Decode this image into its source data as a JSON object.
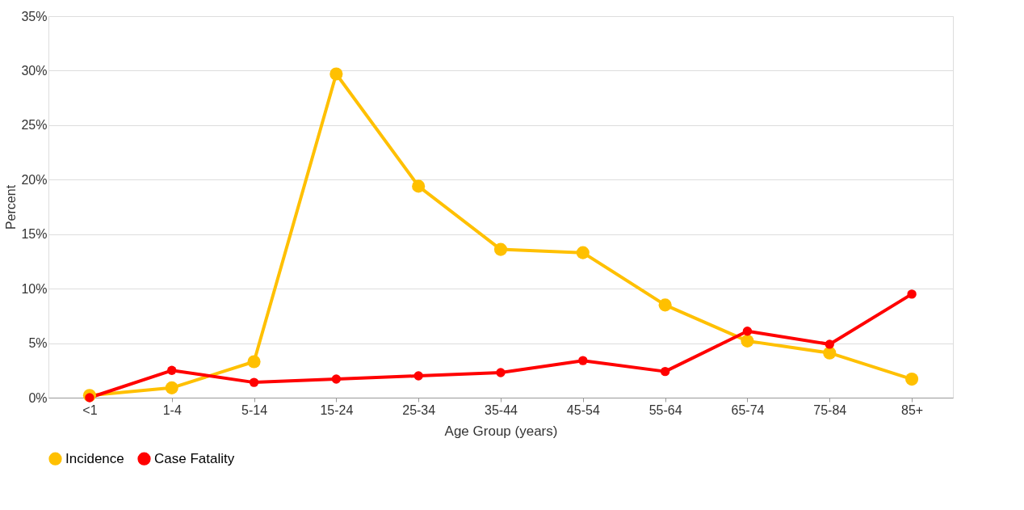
{
  "chart_data": {
    "type": "line",
    "xlabel": "Age Group (years)",
    "ylabel": "Percent",
    "categories": [
      "<1",
      "1-4",
      "5-14",
      "15-24",
      "25-34",
      "35-44",
      "45-54",
      "55-64",
      "65-74",
      "75-84",
      "85+"
    ],
    "series": [
      {
        "name": "Incidence",
        "color": "#ffc000",
        "values": [
          0.2,
          0.9,
          3.3,
          29.7,
          19.4,
          13.6,
          13.3,
          8.5,
          5.2,
          4.1,
          1.7
        ]
      },
      {
        "name": "Case Fatality",
        "color": "#ff0000",
        "values": [
          0.0,
          2.5,
          1.4,
          1.7,
          2.0,
          2.3,
          3.4,
          2.4,
          6.1,
          4.9,
          9.5
        ]
      }
    ],
    "ylim": [
      0,
      35
    ],
    "yticks": [
      {
        "value": 0,
        "label": "0%"
      },
      {
        "value": 5,
        "label": "5%"
      },
      {
        "value": 10,
        "label": "10%"
      },
      {
        "value": 15,
        "label": "15%"
      },
      {
        "value": 20,
        "label": "20%"
      },
      {
        "value": 25,
        "label": "25%"
      },
      {
        "value": 30,
        "label": "30%"
      },
      {
        "value": 35,
        "label": "35%"
      }
    ],
    "grid": "y",
    "legend": "bottom",
    "marker": "circle",
    "line_style": "solid"
  }
}
